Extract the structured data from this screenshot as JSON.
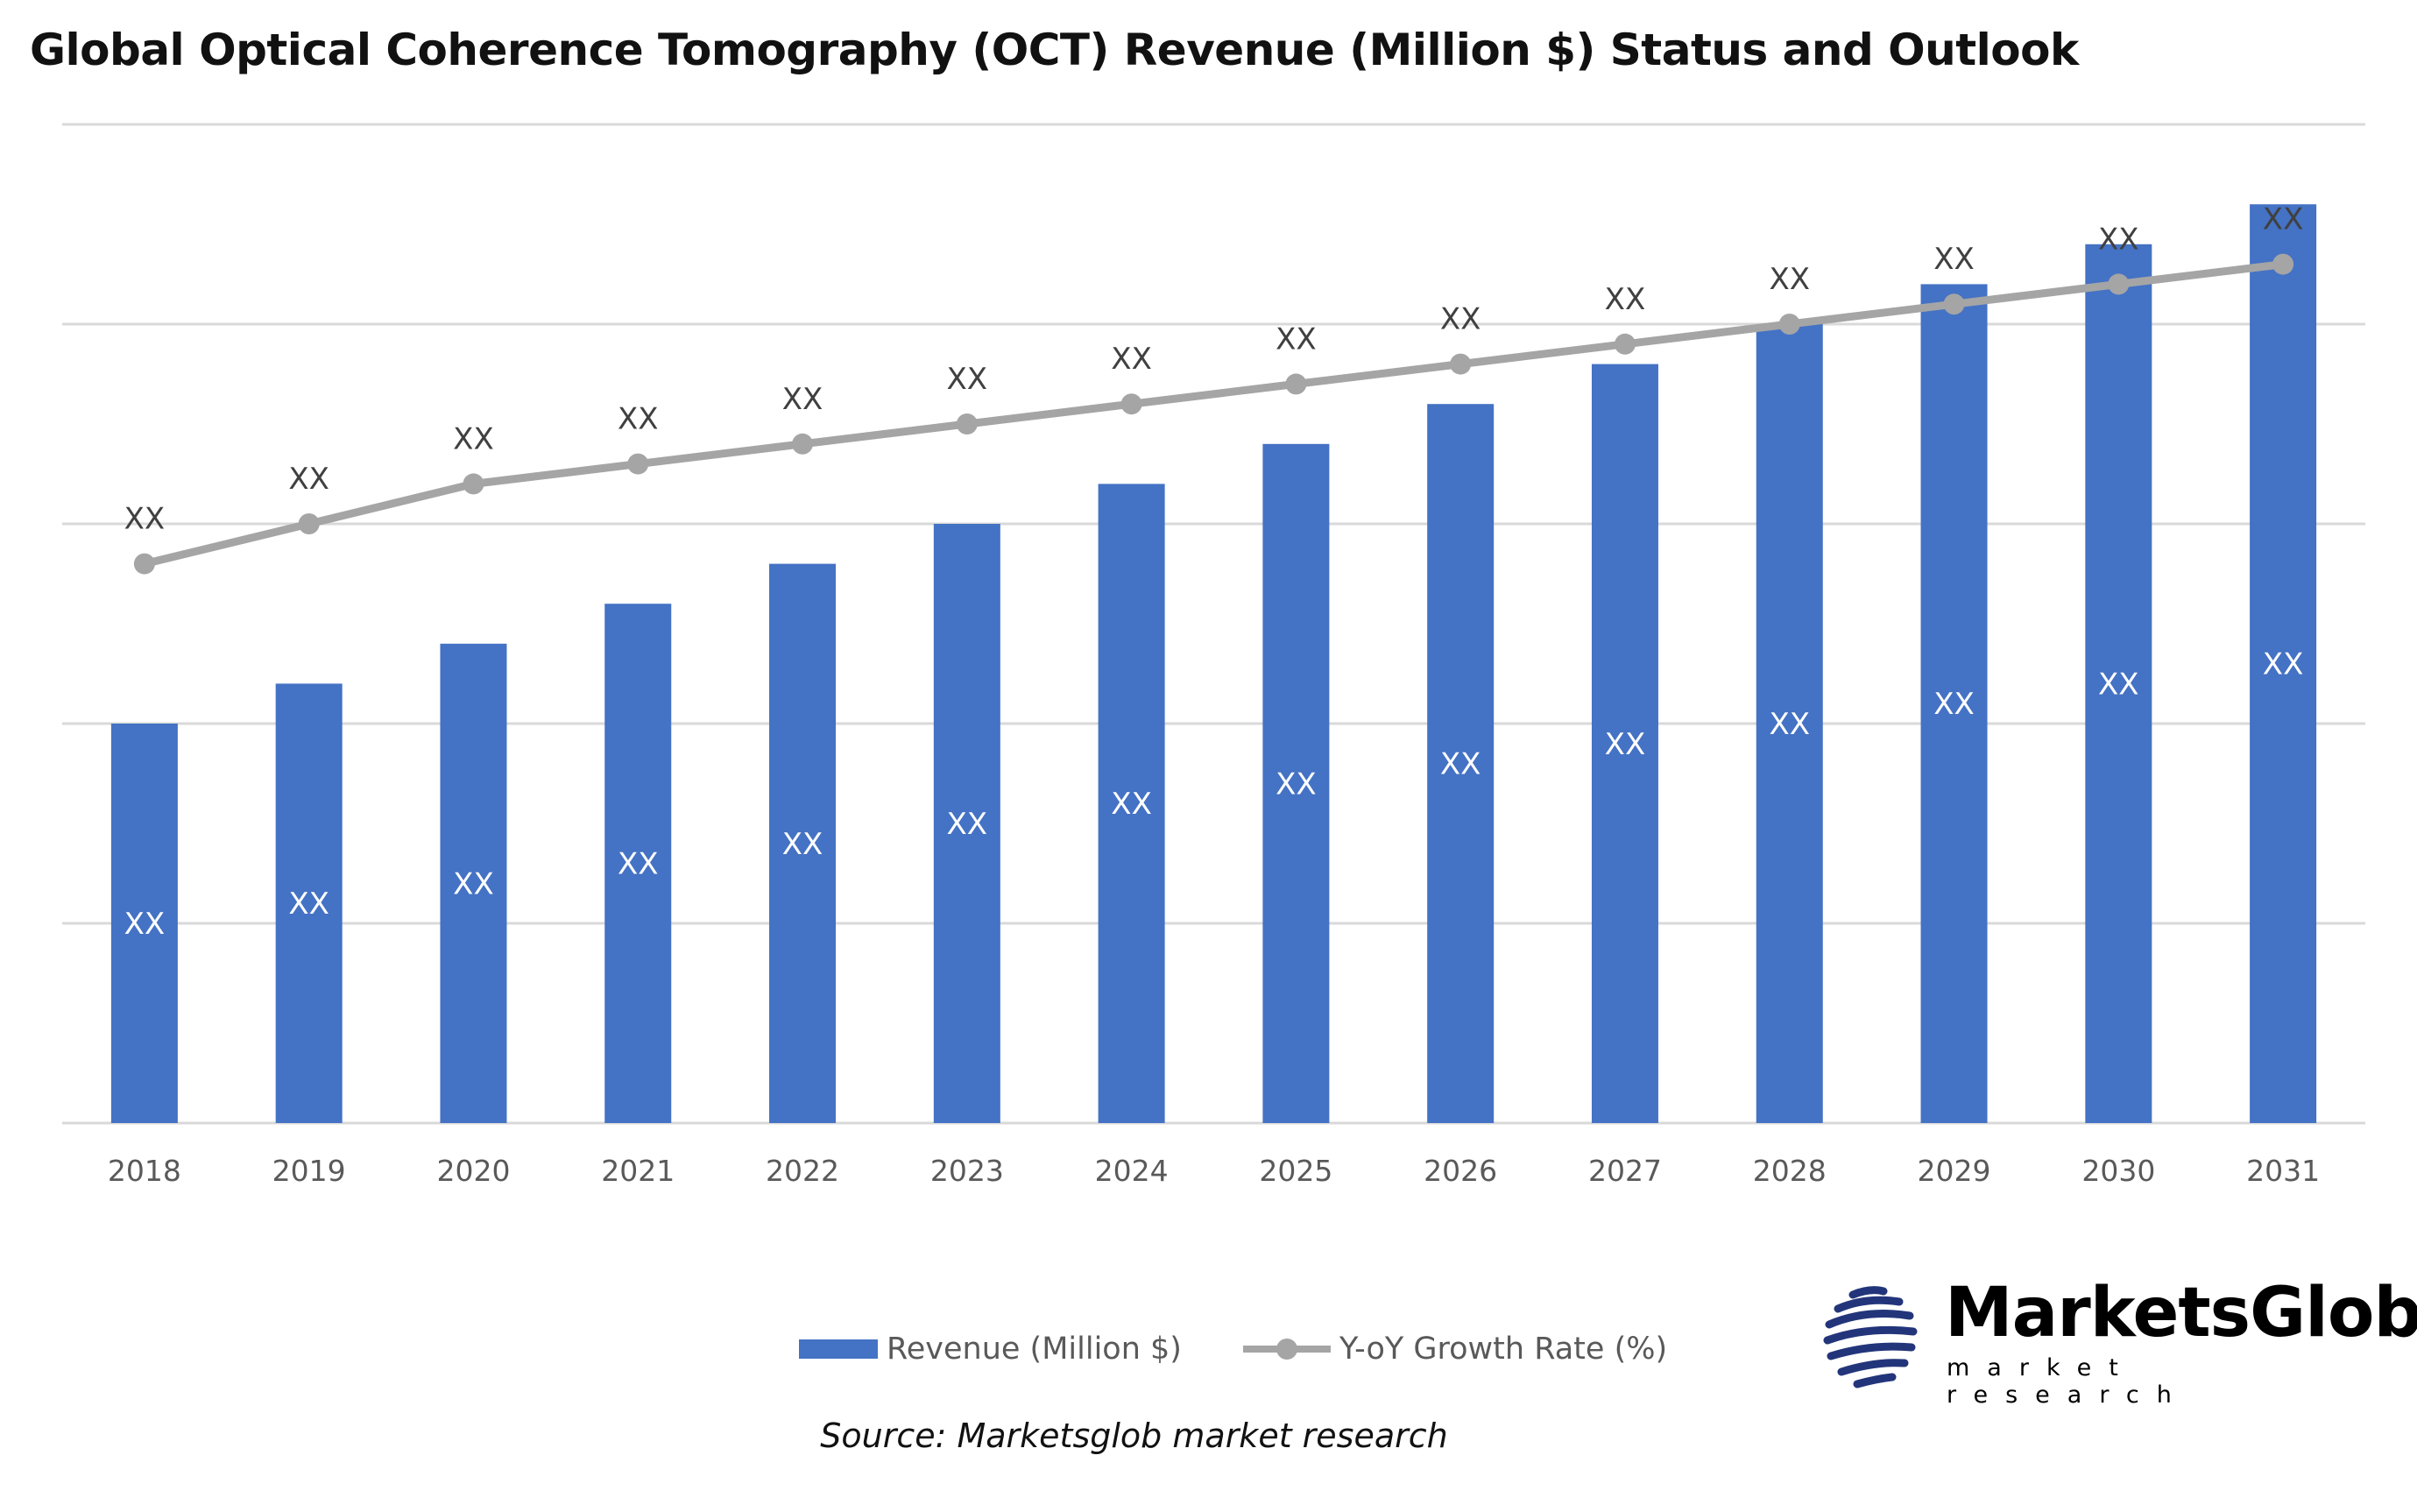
{
  "title": "Global Optical Coherence Tomography (OCT) Revenue (Million $) Status and Outlook",
  "source": "Source: Marketsglob market research",
  "logo": {
    "name": "MarketsGlob",
    "tagline": "market research"
  },
  "colors": {
    "bar": "#4472c4",
    "line": "#a5a5a5",
    "grid": "#d9d9d9"
  },
  "chart_data": {
    "type": "bar+line",
    "title": "Global Optical Coherence Tomography (OCT) Revenue (Million $) Status and Outlook",
    "categories": [
      "2018",
      "2019",
      "2020",
      "2021",
      "2022",
      "2023",
      "2024",
      "2025",
      "2026",
      "2027",
      "2028",
      "2029",
      "2030",
      "2031"
    ],
    "series": [
      {
        "name": "Revenue (Million $)",
        "type": "bar",
        "values": [
          2.0,
          2.2,
          2.4,
          2.6,
          2.8,
          3.0,
          3.2,
          3.4,
          3.6,
          3.8,
          4.0,
          4.2,
          4.4,
          4.6
        ],
        "labels": [
          "XX",
          "XX",
          "XX",
          "XX",
          "XX",
          "XX",
          "XX",
          "XX",
          "XX",
          "XX",
          "XX",
          "XX",
          "XX",
          "XX"
        ]
      },
      {
        "name": "Y-oY Growth Rate (%)",
        "type": "line",
        "values": [
          2.8,
          3.0,
          3.2,
          3.3,
          3.4,
          3.5,
          3.6,
          3.7,
          3.8,
          3.9,
          4.0,
          4.1,
          4.2,
          4.3
        ],
        "labels": [
          "XX",
          "XX",
          "XX",
          "XX",
          "XX",
          "XX",
          "XX",
          "XX",
          "XX",
          "XX",
          "XX",
          "XX",
          "XX",
          "XX"
        ]
      }
    ],
    "ylim": [
      0,
      5
    ],
    "yticks_shown": false,
    "grid": true,
    "legend": "bottom"
  }
}
